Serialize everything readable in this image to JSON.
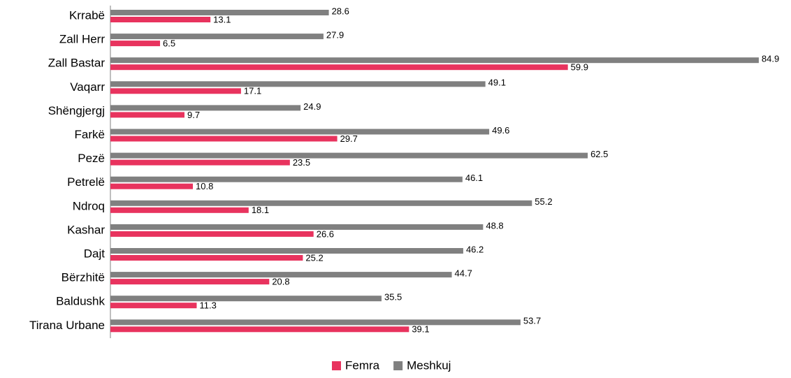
{
  "chart_data": {
    "type": "hbar",
    "categories": [
      "Krrabë",
      "Zall Herr",
      "Zall Bastar",
      "Vaqarr",
      "Shëngjergj",
      "Farkë",
      "Pezë",
      "Petrelë",
      "Ndroq",
      "Kashar",
      "Dajt",
      "Bërzhitë",
      "Baldushk",
      "Tirana Urbane"
    ],
    "series": [
      {
        "name": "Femra",
        "color": "#e8335e",
        "values": [
          13.1,
          6.5,
          59.9,
          17.1,
          9.7,
          29.7,
          23.5,
          10.8,
          18.1,
          26.6,
          25.2,
          20.8,
          11.3,
          39.1
        ]
      },
      {
        "name": "Meshkuj",
        "color": "#808080",
        "values": [
          28.6,
          27.9,
          84.9,
          49.1,
          24.9,
          49.6,
          62.5,
          46.1,
          55.2,
          48.8,
          46.2,
          44.7,
          35.5,
          53.7
        ]
      }
    ],
    "xlim": [
      0,
      85
    ],
    "legend": "bottom"
  }
}
